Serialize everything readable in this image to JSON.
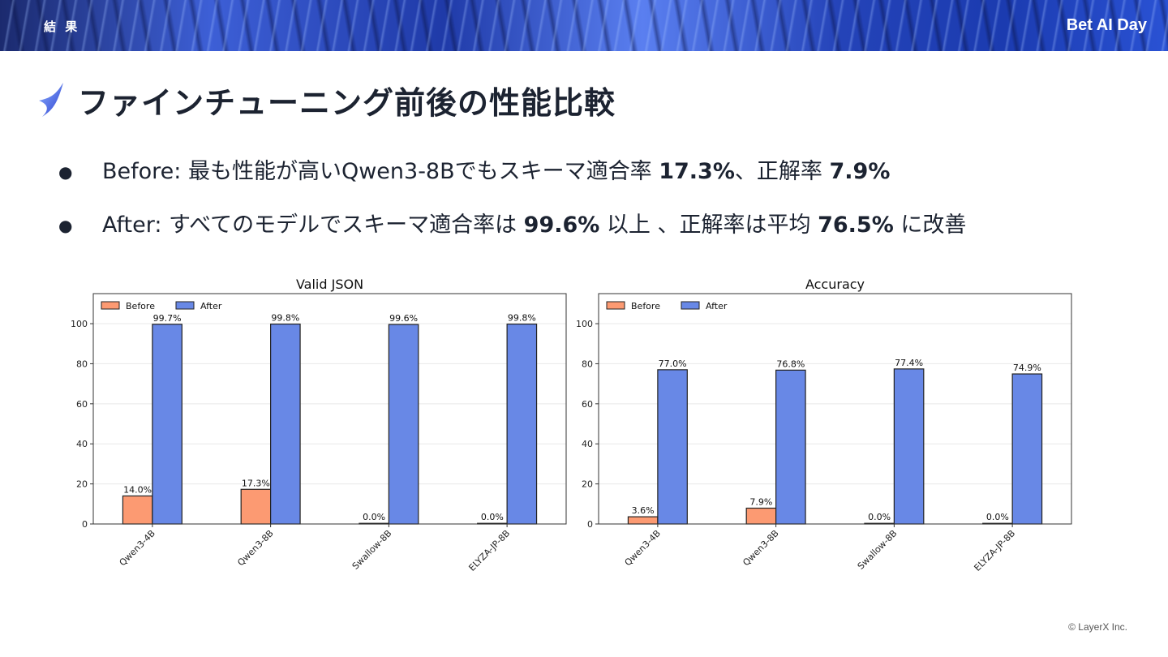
{
  "header": {
    "section_label": "結 果",
    "brand": "Bet AI Day"
  },
  "page": {
    "title": "ファインチューニング前後の性能比較",
    "bullets": [
      {
        "prefix": "Before: 最も性能が高いQwen3-8Bでもスキーマ適合率 ",
        "b1": "17.3%",
        "mid": "、正解率 ",
        "b2": "7.9%",
        "suffix": ""
      },
      {
        "prefix": "After: すべてのモデルでスキーマ適合率は ",
        "b1": "99.6%",
        "mid": " 以上 、正解率は平均 ",
        "b2": "76.5%",
        "suffix": " に改善"
      }
    ]
  },
  "chart_data": [
    {
      "type": "bar",
      "title": "Valid JSON",
      "categories": [
        "Qwen3-4B",
        "Qwen3-8B",
        "Swallow-8B",
        "ELYZA-JP-8B"
      ],
      "series": [
        {
          "name": "Before",
          "values": [
            14.0,
            17.3,
            0.0,
            0.0
          ],
          "color": "#fc9a72"
        },
        {
          "name": "After",
          "values": [
            99.7,
            99.8,
            99.6,
            99.8
          ],
          "color": "#6888e6"
        }
      ],
      "yticks": [
        0,
        20,
        40,
        60,
        80,
        100
      ],
      "ylim": [
        0,
        115
      ],
      "grid": true,
      "legend": "top-left",
      "value_labels": true
    },
    {
      "type": "bar",
      "title": "Accuracy",
      "categories": [
        "Qwen3-4B",
        "Qwen3-8B",
        "Swallow-8B",
        "ELYZA-JP-8B"
      ],
      "series": [
        {
          "name": "Before",
          "values": [
            3.6,
            7.9,
            0.0,
            0.0
          ],
          "color": "#fc9a72"
        },
        {
          "name": "After",
          "values": [
            77.0,
            76.8,
            77.4,
            74.9
          ],
          "color": "#6888e6"
        }
      ],
      "yticks": [
        0,
        20,
        40,
        60,
        80,
        100
      ],
      "ylim": [
        0,
        115
      ],
      "grid": true,
      "legend": "top-left",
      "value_labels": true
    }
  ],
  "footer": {
    "copyright": "© LayerX Inc."
  }
}
